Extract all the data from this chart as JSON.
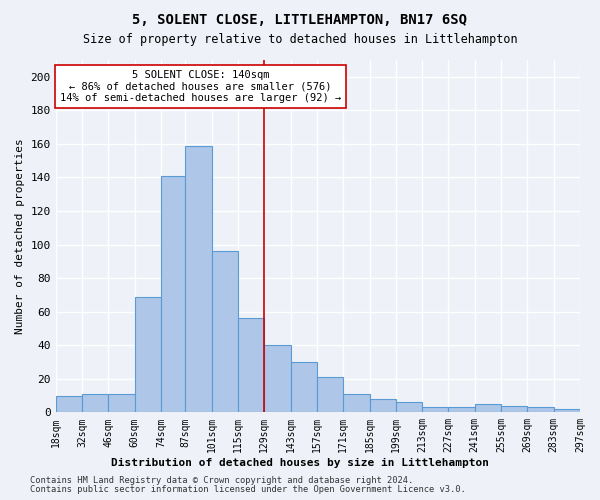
{
  "title": "5, SOLENT CLOSE, LITTLEHAMPTON, BN17 6SQ",
  "subtitle": "Size of property relative to detached houses in Littlehampton",
  "xlabel": "Distribution of detached houses by size in Littlehampton",
  "ylabel": "Number of detached properties",
  "footer_line1": "Contains HM Land Registry data © Crown copyright and database right 2024.",
  "footer_line2": "Contains public sector information licensed under the Open Government Licence v3.0.",
  "annotation_title": "5 SOLENT CLOSE: 140sqm",
  "annotation_line1": "← 86% of detached houses are smaller (576)",
  "annotation_line2": "14% of semi-detached houses are larger (92) →",
  "bar_bins": [
    18,
    32,
    46,
    60,
    74,
    87,
    101,
    115,
    129,
    143,
    157,
    171,
    185,
    199,
    213,
    227,
    241,
    255,
    269,
    283,
    297
  ],
  "bar_heights": [
    10,
    11,
    11,
    69,
    141,
    159,
    96,
    56,
    40,
    30,
    21,
    11,
    8,
    6,
    3,
    3,
    5,
    4,
    3,
    2
  ],
  "tick_labels": [
    "18sqm",
    "32sqm",
    "46sqm",
    "60sqm",
    "74sqm",
    "87sqm",
    "101sqm",
    "115sqm",
    "129sqm",
    "143sqm",
    "157sqm",
    "171sqm",
    "185sqm",
    "199sqm",
    "213sqm",
    "227sqm",
    "241sqm",
    "255sqm",
    "269sqm",
    "283sqm",
    "297sqm"
  ],
  "bar_color": "#aec6e8",
  "bar_edge_color": "#5b9bd5",
  "vline_color": "#cc0000",
  "vline_x": 129,
  "annotation_box_edgecolor": "#cc0000",
  "background_color": "#eef2f8",
  "grid_color": "#ffffff",
  "ylim": [
    0,
    210
  ],
  "yticks": [
    0,
    20,
    40,
    60,
    80,
    100,
    120,
    140,
    160,
    180,
    200
  ]
}
